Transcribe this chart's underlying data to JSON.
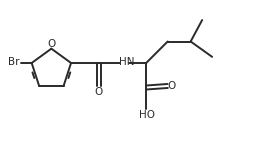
{
  "bg_color": "#ffffff",
  "line_color": "#2a2a2a",
  "line_width": 1.4,
  "font_size": 7.5,
  "figsize": [
    2.76,
    1.51
  ],
  "dpi": 100,
  "xlim": [
    -0.85,
    2.75
  ],
  "ylim": [
    -1.05,
    0.85
  ]
}
